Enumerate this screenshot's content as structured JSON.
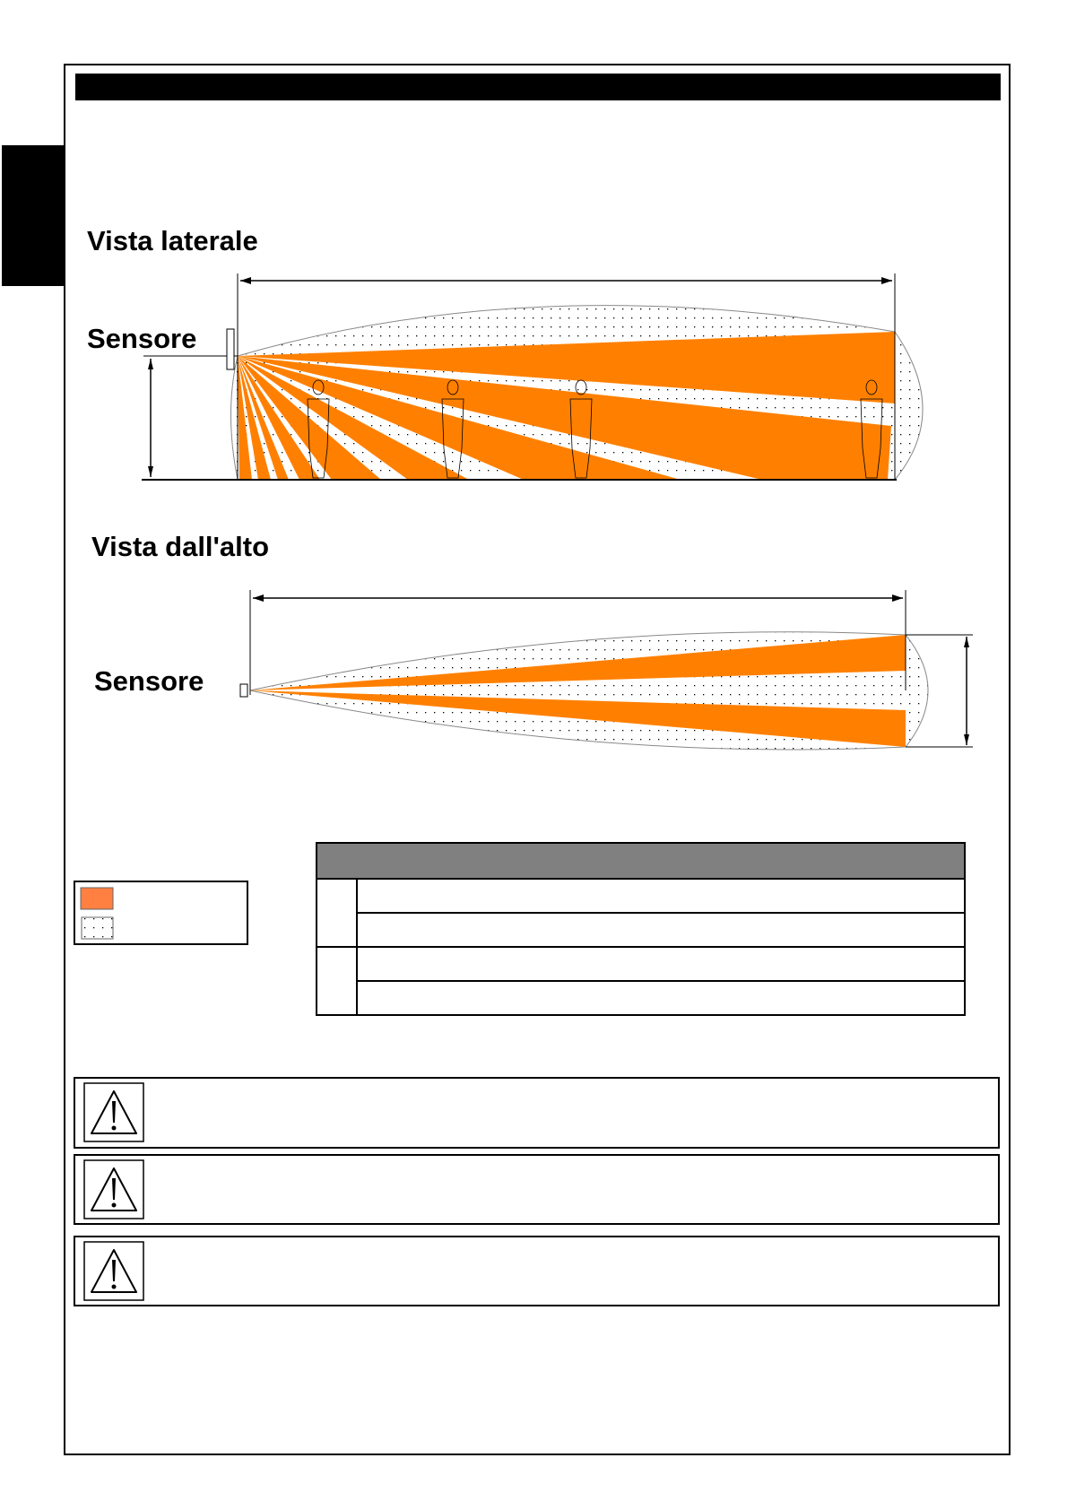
{
  "side_view": {
    "title": "Vista laterale",
    "sensor_label": "Sensore"
  },
  "top_view": {
    "title": "Vista dall'alto",
    "sensor_label": "Sensore"
  },
  "colors": {
    "active_zone": "#ff8000",
    "legend_active": "#ff8040",
    "table_header": "#808080",
    "dotted_zone": "#000000"
  },
  "legend": {
    "items": [
      {
        "swatch": "orange-fill"
      },
      {
        "swatch": "dotted-fill"
      }
    ]
  },
  "warnings": [
    {
      "icon": "warning-triangle-icon"
    },
    {
      "icon": "warning-triangle-icon"
    },
    {
      "icon": "warning-triangle-icon"
    }
  ]
}
